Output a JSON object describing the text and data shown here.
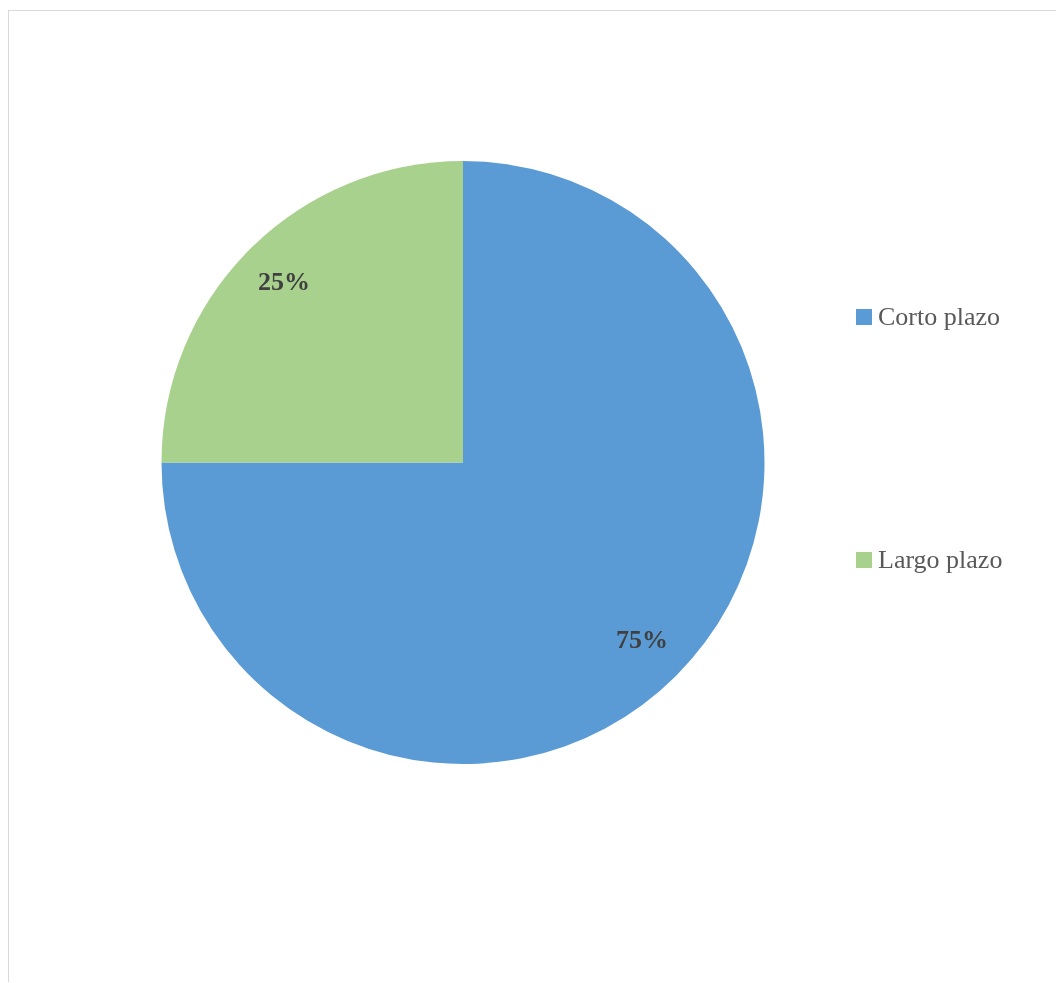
{
  "chart_data": {
    "type": "pie",
    "categories": [
      "Corto plazo",
      "Largo plazo"
    ],
    "values": [
      75,
      25
    ],
    "colors": [
      "#5b9bd5",
      "#a9d18e"
    ],
    "value_labels": [
      "75%",
      "25%"
    ],
    "legend": "right"
  }
}
